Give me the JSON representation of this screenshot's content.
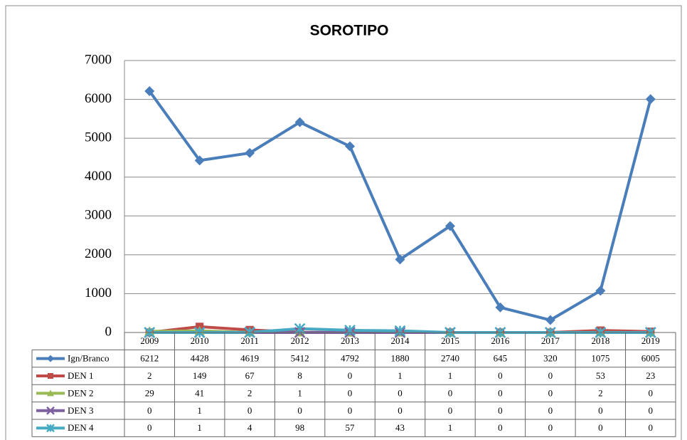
{
  "chart_data": {
    "type": "line",
    "title": "SOROTIPO",
    "categories": [
      "2009",
      "2010",
      "2011",
      "2012",
      "2013",
      "2014",
      "2015",
      "2016",
      "2017",
      "2018",
      "2019"
    ],
    "series": [
      {
        "name": "Ign/Branco",
        "color": "#4a7ebb",
        "marker": "diamond",
        "values": [
          6212,
          4428,
          4619,
          5412,
          4792,
          1880,
          2740,
          645,
          320,
          1075,
          6005
        ]
      },
      {
        "name": "DEN 1",
        "color": "#be4b48",
        "marker": "square",
        "values": [
          2,
          149,
          67,
          8,
          0,
          1,
          1,
          0,
          0,
          53,
          23
        ]
      },
      {
        "name": "DEN 2",
        "color": "#98b954",
        "marker": "triangle",
        "values": [
          29,
          41,
          2,
          1,
          0,
          0,
          0,
          0,
          0,
          2,
          0
        ]
      },
      {
        "name": "DEN 3",
        "color": "#7d60a0",
        "marker": "x",
        "values": [
          0,
          1,
          0,
          0,
          0,
          0,
          0,
          0,
          0,
          0,
          0
        ]
      },
      {
        "name": "DEN 4",
        "color": "#46aac5",
        "marker": "star",
        "values": [
          0,
          1,
          4,
          98,
          57,
          43,
          1,
          0,
          0,
          0,
          0
        ]
      }
    ],
    "ylim": [
      0,
      7000
    ],
    "yticks": [
      0,
      1000,
      2000,
      3000,
      4000,
      5000,
      6000,
      7000
    ],
    "grid": true,
    "data_table": true
  }
}
